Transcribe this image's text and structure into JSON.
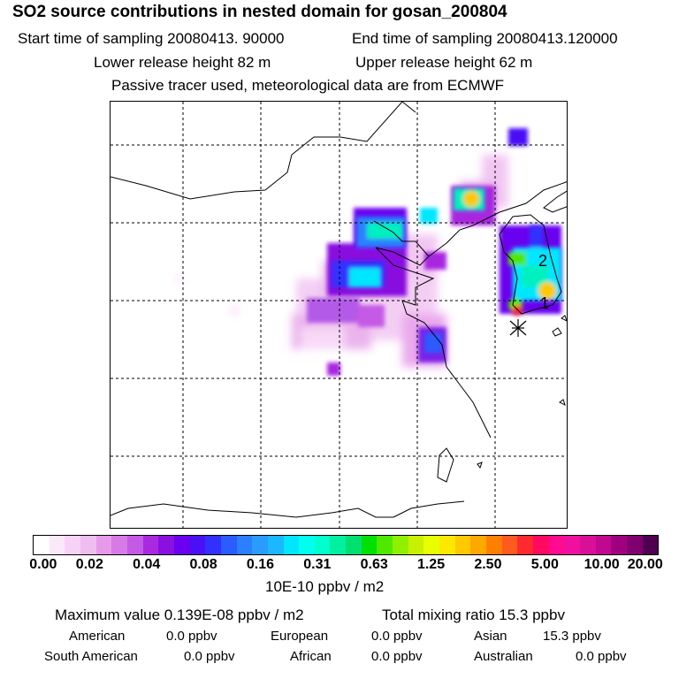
{
  "header": {
    "title": "SO2 source contributions in nested domain for gosan_200804",
    "start_time": "Start time of sampling 20080413. 90000",
    "end_time": "End time of sampling 20080413.120000",
    "lower_height": "Lower release height   82 m",
    "upper_height": "Upper release height   62 m",
    "note": "Passive tracer used, meteorological data are from ECMWF"
  },
  "map": {
    "markers": [
      {
        "label": "1"
      },
      {
        "label": "2"
      }
    ],
    "receptor_symbol": "asterisk-icon"
  },
  "colorbar": {
    "unit": "10E-10 ppbv / m2",
    "ticks": [
      "0.00",
      "0.02",
      "0.04",
      "0.08",
      "0.16",
      "0.31",
      "0.63",
      "1.25",
      "2.50",
      "5.00",
      "10.00",
      "20.00"
    ],
    "colors": [
      "#ffffff",
      "#fbe9fb",
      "#f6d3f6",
      "#f0bdf0",
      "#e79ae9",
      "#d77ae6",
      "#c45ae6",
      "#a928e0",
      "#8a10e0",
      "#6a00f0",
      "#4a10f5",
      "#3030ff",
      "#2a5cff",
      "#2a80ff",
      "#2a9cff",
      "#1ab8ff",
      "#00e6ff",
      "#00ffee",
      "#00ffcc",
      "#00f0a0",
      "#00e070",
      "#00e000",
      "#50e800",
      "#90f000",
      "#c8f000",
      "#e8ff00",
      "#ffe800",
      "#ffc800",
      "#ffa800",
      "#ff8000",
      "#ff5a20",
      "#ff2a30",
      "#ff0a60",
      "#ff0a90",
      "#f010a0",
      "#d81098",
      "#c00890",
      "#a00080",
      "#800070",
      "#500050"
    ]
  },
  "summary": {
    "max_value": "Maximum value  0.139E-08 ppbv / m2",
    "total_mixing": "Total mixing ratio       15.3 ppbv",
    "rows": [
      [
        {
          "name": "American",
          "value": "0.0 ppbv"
        },
        {
          "name": "European",
          "value": "0.0 ppbv"
        },
        {
          "name": "Asian",
          "value": "15.3 ppbv"
        }
      ],
      [
        {
          "name": "South American",
          "value": "0.0 ppbv"
        },
        {
          "name": "African",
          "value": "0.0 ppbv"
        },
        {
          "name": "Australian",
          "value": "0.0 ppbv"
        }
      ]
    ]
  }
}
